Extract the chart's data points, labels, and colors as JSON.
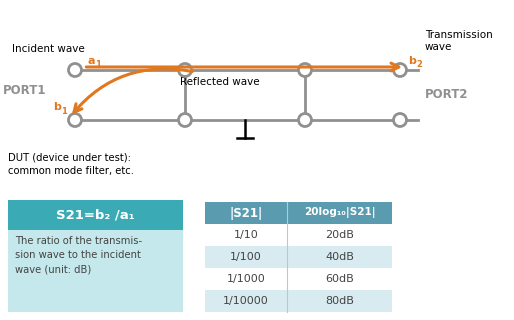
{
  "orange": "#E07820",
  "gray": "#909090",
  "dark_gray": "#444444",
  "teal_header": "#3AABB5",
  "teal_light": "#C5E8EC",
  "table_header_bg": "#5B9BAF",
  "table_row_alt": "#D8EBF0",
  "table_row_white": "#FFFFFF",
  "port1_label": "PORT1",
  "port2_label": "PORT2",
  "incident_label": "Incident wave",
  "transmission_label": "Transmission\nwave",
  "reflected_label": "Reflected wave",
  "dut_label": "DUT (device under test):\ncommon mode filter, etc.",
  "a1_label": "a",
  "b2_label": "b",
  "b1_label": "b",
  "s21_formula": "S21=b₂ /a₁",
  "s21_desc": "The ratio of the transmis-\nsion wave to the incident\nwave (unit: dB)",
  "col1_header": "|S21|",
  "col2_header": "20log₁₀|S21|",
  "table_data": [
    [
      "1/10",
      "20dB"
    ],
    [
      "1/100",
      "40dB"
    ],
    [
      "1/1000",
      "60dB"
    ],
    [
      "1/10000",
      "80dB"
    ]
  ],
  "fig_w": 5.14,
  "fig_h": 3.2,
  "dpi": 100
}
